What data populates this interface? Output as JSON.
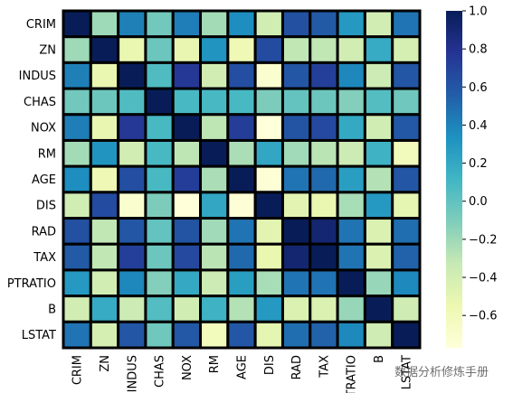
{
  "chart_data": {
    "type": "heatmap",
    "title": "",
    "variables": [
      "CRIM",
      "ZN",
      "INDUS",
      "CHAS",
      "NOX",
      "RM",
      "AGE",
      "DIS",
      "RAD",
      "TAX",
      "PTRATIO",
      "B",
      "LSTAT"
    ],
    "matrix": [
      [
        1.0,
        -0.2,
        0.41,
        -0.06,
        0.42,
        -0.22,
        0.35,
        -0.38,
        0.63,
        0.58,
        0.29,
        -0.39,
        0.46
      ],
      [
        -0.2,
        1.0,
        -0.53,
        -0.04,
        -0.52,
        0.31,
        -0.57,
        0.66,
        -0.31,
        -0.31,
        -0.39,
        0.18,
        -0.41
      ],
      [
        0.41,
        -0.53,
        1.0,
        0.06,
        0.76,
        -0.39,
        0.64,
        -0.71,
        0.6,
        0.72,
        0.38,
        -0.36,
        0.6
      ],
      [
        -0.06,
        -0.04,
        0.06,
        1.0,
        0.09,
        0.09,
        0.09,
        -0.1,
        -0.01,
        -0.04,
        -0.12,
        0.05,
        -0.05
      ],
      [
        0.42,
        -0.52,
        0.76,
        0.09,
        1.0,
        -0.3,
        0.73,
        -0.77,
        0.61,
        0.67,
        0.19,
        -0.38,
        0.59
      ],
      [
        -0.22,
        0.31,
        -0.39,
        0.09,
        -0.3,
        1.0,
        -0.24,
        0.21,
        -0.21,
        -0.29,
        -0.36,
        0.13,
        -0.61
      ],
      [
        0.35,
        -0.57,
        0.64,
        0.09,
        0.73,
        -0.24,
        1.0,
        -0.75,
        0.46,
        0.51,
        0.26,
        -0.27,
        0.6
      ],
      [
        -0.38,
        0.66,
        -0.71,
        -0.1,
        -0.77,
        0.21,
        -0.75,
        1.0,
        -0.49,
        -0.53,
        -0.23,
        0.29,
        -0.5
      ],
      [
        0.63,
        -0.31,
        0.6,
        -0.01,
        0.61,
        -0.21,
        0.46,
        -0.49,
        1.0,
        0.91,
        0.46,
        -0.44,
        0.49
      ],
      [
        0.58,
        -0.31,
        0.72,
        -0.04,
        0.67,
        -0.29,
        0.51,
        -0.53,
        0.91,
        1.0,
        0.46,
        -0.44,
        0.54
      ],
      [
        0.29,
        -0.39,
        0.38,
        -0.12,
        0.19,
        -0.36,
        0.26,
        -0.23,
        0.46,
        0.46,
        1.0,
        -0.18,
        0.37
      ],
      [
        -0.39,
        0.18,
        -0.36,
        0.05,
        -0.38,
        0.13,
        -0.27,
        0.29,
        -0.44,
        -0.44,
        -0.18,
        1.0,
        -0.37
      ],
      [
        0.46,
        -0.41,
        0.6,
        -0.05,
        0.59,
        -0.61,
        0.6,
        -0.5,
        0.49,
        0.54,
        0.37,
        -0.37,
        1.0
      ]
    ],
    "colorbar": {
      "min": -0.77,
      "max": 1.0,
      "ticks": [
        1.0,
        0.8,
        0.6,
        0.4,
        0.2,
        0.0,
        -0.2,
        -0.4,
        -0.6
      ],
      "tick_labels": [
        "1.0",
        "0.8",
        "0.6",
        "0.4",
        "0.2",
        "0.0",
        "−0.2",
        "−0.4",
        "−0.6"
      ],
      "colormap": "YlGnBu",
      "colormap_stops": [
        "#ffffd9",
        "#edf8b1",
        "#c7e9b4",
        "#7fcdbb",
        "#41b6c4",
        "#1d91c0",
        "#225ea8",
        "#253494",
        "#081d58"
      ]
    },
    "grid_line_color": "#000000",
    "watermark_text": "数据分析修炼手册"
  }
}
